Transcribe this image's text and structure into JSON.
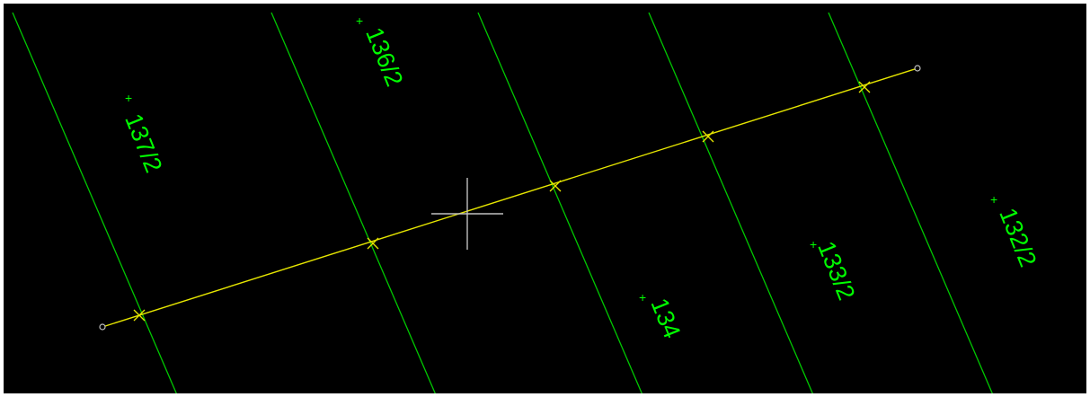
{
  "canvas": {
    "background_color": "#000000",
    "border_color": "#ffffff",
    "boundary_line_color": "#00c800",
    "label_color": "#00ff00",
    "polyline_color": "#e6e600",
    "cursor_color": "#c0c0c0",
    "endpoint_marker_color": "#c0c0c0"
  },
  "parcels": [
    {
      "label": "137/2",
      "plus": "+"
    },
    {
      "label": "136/2",
      "plus": "+"
    },
    {
      "label": "134",
      "plus": "+"
    },
    {
      "label": "133/2",
      "plus": "+"
    },
    {
      "label": "132/2",
      "plus": "+"
    }
  ],
  "icons": {
    "crosshair": "crosshair-cursor-icon",
    "vertex": "x-vertex-marker-icon",
    "endpoint": "circle-endpoint-icon"
  }
}
